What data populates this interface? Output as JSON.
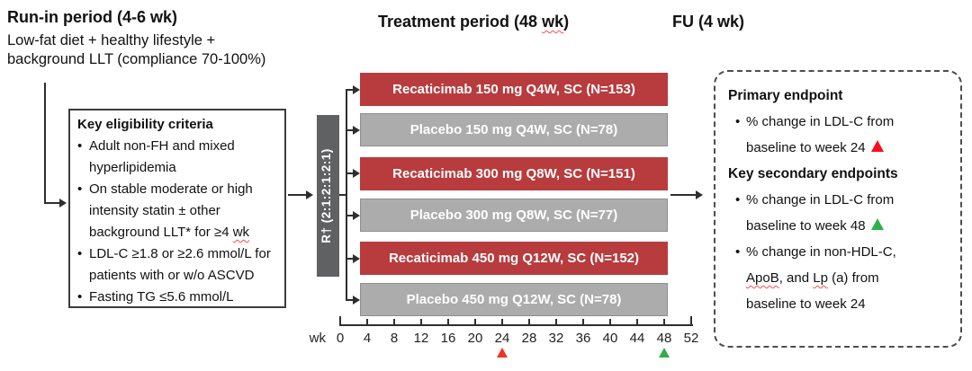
{
  "headers": {
    "runin_title": "Run-in period (4-6 wk)",
    "runin_sub1": "Low-fat diet + healthy lifestyle +",
    "runin_sub2": "background LLT (compliance 70-100%)",
    "treatment_pre": "Treatment period (48 ",
    "treatment_wavy": "wk",
    "treatment_post": ")",
    "fu_title": "FU (4 wk)"
  },
  "eligibility": {
    "title": "Key eligibility criteria",
    "bullet": "•",
    "lines": {
      "b1a": "Adult non-FH and mixed",
      "b1b": "hyperlipidemia",
      "b2a": "On stable moderate or high",
      "b2b": "intensity statin ± other",
      "b2c_pre": "background LLT* for ≥4 ",
      "b2c_wavy": "wk",
      "b3a": "LDL-C ≥1.8 or ≥2.6 mmol/L for",
      "b3b": "patients with or w/o ASCVD",
      "b4": "Fasting TG ≤5.6 mmol/L"
    }
  },
  "randomization": {
    "label": "R† (2:1:2:1:2:1)"
  },
  "bars": [
    {
      "label": "Recaticimab 150 mg Q4W, SC (N=153)",
      "type": "recaticimab"
    },
    {
      "label": "Placebo 150 mg Q4W, SC (N=78)",
      "type": "placebo"
    },
    {
      "label": "Recaticimab 300 mg Q8W, SC (N=151)",
      "type": "recaticimab"
    },
    {
      "label": "Placebo 300 mg Q8W, SC (N=77)",
      "type": "placebo"
    },
    {
      "label": "Recaticimab 450 mg Q12W, SC (N=152)",
      "type": "recaticimab"
    },
    {
      "label": "Placebo 450 mg Q12W, SC (N=78)",
      "type": "placebo"
    }
  ],
  "axis": {
    "unit_label": "wk",
    "ticks": [
      "0",
      "4",
      "8",
      "12",
      "16",
      "20",
      "24",
      "28",
      "32",
      "36",
      "40",
      "44",
      "48",
      "52"
    ],
    "primary_marker_week": "24",
    "secondary_marker_week": "48"
  },
  "endpoints": {
    "bullet": "•",
    "primary_heading": "Primary endpoint",
    "secondary_heading": "Key secondary endpoints",
    "lines": {
      "p1a": "% change in LDL-C from",
      "p1b": "baseline to week 24",
      "s1a": "% change in LDL-C from",
      "s1b": "baseline to week 48",
      "s2a": "% change in non-HDL-C,",
      "s2b_w1": "ApoB",
      "s2b_m": ", and ",
      "s2b_w2": "Lp",
      "s2b_post": " (a) from",
      "s2c": "baseline to week 24"
    }
  },
  "colors": {
    "drug_red": "#b83b3e",
    "placebo_gray": "#acacac",
    "placebo_border": "#8e8e8e",
    "randomization_gray": "#5f6163",
    "line_dark": "#2e2e2e",
    "marker_red": "#ee3524",
    "marker_green": "#2fad4b",
    "triangle_red": "#fb0d1b",
    "triangle_green": "#2db04c",
    "wavy_red": "#ff4b4b"
  }
}
